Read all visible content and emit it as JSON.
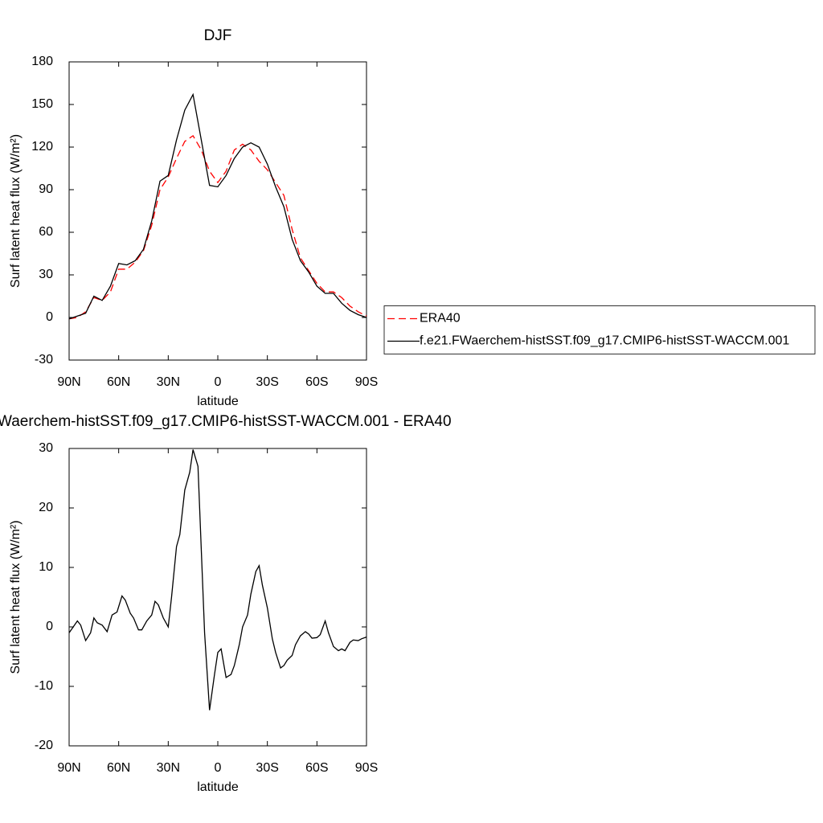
{
  "chart_data": [
    {
      "type": "line",
      "title": "DJF",
      "x_label": "latitude",
      "y_label": "Surf latent heat flux (W/m²)",
      "x": [
        90,
        85,
        80,
        75,
        70,
        65,
        60,
        55,
        50,
        45,
        40,
        35,
        30,
        25,
        20,
        15,
        10,
        5,
        0,
        -5,
        -10,
        -15,
        -20,
        -25,
        -30,
        -35,
        -40,
        -45,
        -50,
        -55,
        -60,
        -65,
        -70,
        -75,
        -80,
        -85,
        -90
      ],
      "xlim": [
        90,
        -90
      ],
      "xticks": [
        {
          "value": 90,
          "label": "90N"
        },
        {
          "value": 60,
          "label": "60N"
        },
        {
          "value": 30,
          "label": "30N"
        },
        0,
        {
          "value": -30,
          "label": "30S"
        },
        {
          "value": -60,
          "label": "60S"
        },
        {
          "value": -90,
          "label": "90S"
        }
      ],
      "ylim": [
        -30,
        180
      ],
      "yticks": [
        -30,
        0,
        30,
        60,
        90,
        120,
        150,
        180
      ],
      "legend": "right",
      "series": [
        {
          "name": "ERA40",
          "color": "#ff0000",
          "dash": "dashed",
          "values": [
            -1,
            0,
            4,
            14,
            12,
            18,
            34,
            34,
            39,
            47,
            65,
            90,
            99,
            112,
            124,
            128,
            118,
            103,
            95,
            103,
            118,
            122,
            118,
            110,
            104,
            95,
            86,
            62,
            42,
            33,
            24,
            18,
            18,
            14,
            8,
            4,
            1
          ]
        },
        {
          "name": "f.e21.FWaerchem-histSST.f09_g17.CMIP6-histSST-WACCM.001",
          "color": "#000000",
          "dash": "solid",
          "values": [
            -1,
            1,
            3,
            15,
            12,
            22,
            38,
            37,
            40,
            48,
            68,
            96,
            100,
            125,
            146,
            157,
            125,
            93,
            92,
            100,
            112,
            120,
            123,
            120,
            108,
            92,
            78,
            55,
            40,
            32,
            22,
            17,
            17,
            10,
            5,
            2,
            0
          ]
        }
      ]
    },
    {
      "type": "line",
      "title": "Waerchem-histSST.f09_g17.CMIP6-histSST-WACCM.001 - ERA40",
      "x_label": "latitude",
      "y_label": "Surf latent heat flux (W/m²)",
      "x": [
        90,
        85,
        83,
        80,
        77,
        75,
        73,
        70,
        67,
        64,
        61,
        58,
        56,
        53,
        51,
        48,
        46,
        43,
        40,
        38,
        36,
        33,
        30,
        28,
        25,
        23,
        20,
        17,
        15,
        12,
        10,
        8,
        5,
        2,
        0,
        -2,
        -5,
        -8,
        -10,
        -13,
        -15,
        -18,
        -20,
        -23,
        -25,
        -27,
        -30,
        -33,
        -35,
        -38,
        -40,
        -42,
        -45,
        -47,
        -50,
        -53,
        -55,
        -57,
        -60,
        -62,
        -65,
        -67,
        -70,
        -73,
        -75,
        -77,
        -80,
        -82,
        -85,
        -87,
        -90
      ],
      "xlim": [
        90,
        -90
      ],
      "xticks": [
        {
          "value": 90,
          "label": "90N"
        },
        {
          "value": 60,
          "label": "60N"
        },
        {
          "value": 30,
          "label": "30N"
        },
        0,
        {
          "value": -30,
          "label": "30S"
        },
        {
          "value": -60,
          "label": "60S"
        },
        {
          "value": -90,
          "label": "90S"
        }
      ],
      "ylim": [
        -20,
        30
      ],
      "yticks": [
        -20,
        -10,
        0,
        10,
        20,
        30
      ],
      "series": [
        {
          "color": "#000000",
          "dash": "solid",
          "values": [
            -1,
            1,
            0.3,
            -2.3,
            -1,
            1.5,
            0.7,
            0.3,
            -0.8,
            2,
            2.5,
            5.2,
            4.5,
            2.3,
            1.5,
            -0.5,
            -0.5,
            1,
            2,
            4.3,
            3.7,
            1.5,
            0,
            5,
            13.5,
            15.5,
            23,
            26,
            29.8,
            27,
            13,
            -1,
            -14,
            -8,
            -4.3,
            -3.7,
            -8.5,
            -8,
            -6.5,
            -3,
            0,
            2,
            5.5,
            9.3,
            10.3,
            7,
            3.2,
            -2,
            -4.3,
            -6.9,
            -6.5,
            -5.6,
            -4.8,
            -3,
            -1.5,
            -0.8,
            -1.2,
            -1.9,
            -1.8,
            -1.3,
            1,
            -1,
            -3.3,
            -4,
            -3.7,
            -4,
            -2.6,
            -2.2,
            -2.3,
            -2,
            -1.7
          ]
        }
      ]
    }
  ]
}
